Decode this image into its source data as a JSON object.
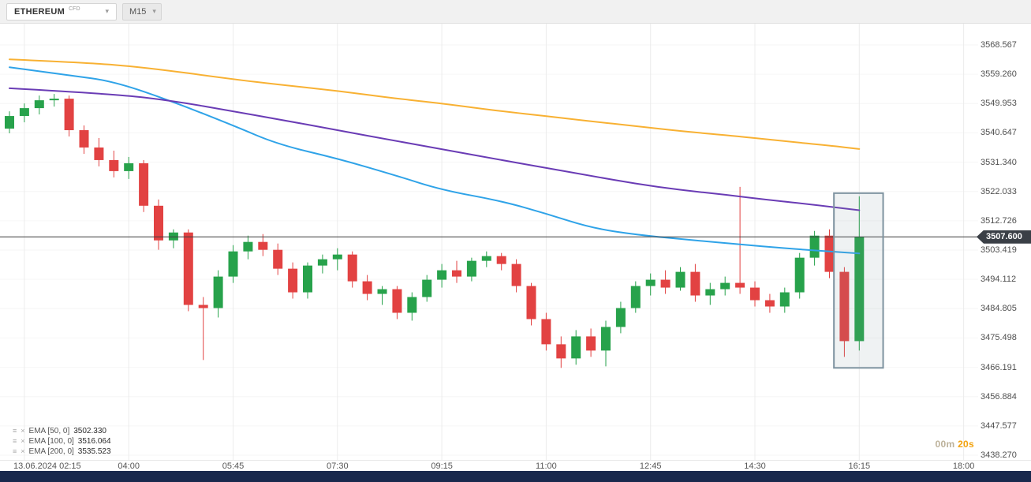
{
  "header": {
    "symbol": "ETHEREUM",
    "symbol_type": "CFD",
    "timeframe": "M15"
  },
  "legend": {
    "items": [
      {
        "label": "EMA [50, 0]",
        "value": "3502.330"
      },
      {
        "label": "EMA [100, 0]",
        "value": "3516.064"
      },
      {
        "label": "EMA [200, 0]",
        "value": "3535.523"
      }
    ]
  },
  "countdown": {
    "minutes": "00m",
    "seconds": "20s"
  },
  "colors": {
    "up": "#27a24b",
    "down": "#e24242",
    "price_line": "#3c3c3c",
    "badge_bg": "#3a3f46",
    "grid_v": "#ececec",
    "grid_h": "#f6f6f6",
    "highlight_stroke": "#7e93a0",
    "highlight_fill": "rgba(120,144,156,0.12)",
    "bottom_bar": "#19294d",
    "countdown_min": "#bdb29b",
    "countdown_sec": "#f2a20d"
  },
  "chart_data": {
    "type": "candlestick",
    "title": "ETHEREUM CFD M15",
    "date": "13.06.2024",
    "current_price": "3507.600",
    "y_axis_labels": [
      "3568.567",
      "3559.260",
      "3549.953",
      "3540.647",
      "3531.340",
      "3522.033",
      "3512.726",
      "3503.419",
      "3494.112",
      "3484.805",
      "3475.498",
      "3466.191",
      "3456.884",
      "3447.577",
      "3438.270"
    ],
    "x_ticks": [
      {
        "label": "13.06.2024 02:15",
        "index": 1,
        "align": "left"
      },
      {
        "label": "04:00",
        "index": 8
      },
      {
        "label": "05:45",
        "index": 15
      },
      {
        "label": "07:30",
        "index": 22
      },
      {
        "label": "09:15",
        "index": 29
      },
      {
        "label": "11:00",
        "index": 36
      },
      {
        "label": "12:45",
        "index": 43
      },
      {
        "label": "14:30",
        "index": 50
      },
      {
        "label": "16:15",
        "index": 57
      },
      {
        "label": "18:00",
        "index": 64
      }
    ],
    "candle_fields": [
      "time",
      "open",
      "high",
      "low",
      "close"
    ],
    "candles": [
      [
        "02:00",
        3542.0,
        3547.5,
        3540.5,
        3546.0
      ],
      [
        "02:15",
        3546.0,
        3550.0,
        3544.0,
        3548.5
      ],
      [
        "02:30",
        3548.5,
        3552.5,
        3546.5,
        3551.0
      ],
      [
        "02:45",
        3551.0,
        3553.0,
        3549.0,
        3551.5
      ],
      [
        "03:00",
        3551.5,
        3552.5,
        3539.5,
        3541.5
      ],
      [
        "03:15",
        3541.5,
        3543.0,
        3534.0,
        3536.0
      ],
      [
        "03:30",
        3536.0,
        3539.0,
        3530.0,
        3532.0
      ],
      [
        "03:45",
        3532.0,
        3535.0,
        3526.5,
        3528.5
      ],
      [
        "04:00",
        3528.5,
        3533.0,
        3526.0,
        3531.0
      ],
      [
        "04:15",
        3531.0,
        3532.0,
        3515.5,
        3517.5
      ],
      [
        "04:30",
        3517.5,
        3519.5,
        3503.5,
        3506.5
      ],
      [
        "04:45",
        3506.5,
        3510.0,
        3504.0,
        3509.0
      ],
      [
        "05:00",
        3509.0,
        3510.0,
        3484.0,
        3486.0
      ],
      [
        "05:15",
        3486.0,
        3488.5,
        3468.5,
        3485.0
      ],
      [
        "05:30",
        3485.0,
        3497.0,
        3482.0,
        3495.0
      ],
      [
        "05:45",
        3495.0,
        3505.0,
        3493.0,
        3503.0
      ],
      [
        "06:00",
        3503.0,
        3508.0,
        3500.5,
        3506.0
      ],
      [
        "06:15",
        3506.0,
        3508.5,
        3501.5,
        3503.5
      ],
      [
        "06:30",
        3503.5,
        3505.5,
        3495.5,
        3497.5
      ],
      [
        "06:45",
        3497.5,
        3499.5,
        3488.0,
        3490.0
      ],
      [
        "07:00",
        3490.0,
        3499.5,
        3488.0,
        3498.5
      ],
      [
        "07:15",
        3498.5,
        3502.0,
        3496.0,
        3500.5
      ],
      [
        "07:30",
        3500.5,
        3504.0,
        3497.0,
        3502.0
      ],
      [
        "07:45",
        3502.0,
        3503.0,
        3491.5,
        3493.5
      ],
      [
        "08:00",
        3493.5,
        3495.5,
        3487.5,
        3489.5
      ],
      [
        "08:15",
        3489.5,
        3492.0,
        3486.0,
        3491.0
      ],
      [
        "08:30",
        3491.0,
        3492.0,
        3481.5,
        3483.5
      ],
      [
        "08:45",
        3483.5,
        3490.0,
        3481.0,
        3488.5
      ],
      [
        "09:00",
        3488.5,
        3495.5,
        3487.0,
        3494.0
      ],
      [
        "09:15",
        3494.0,
        3499.0,
        3491.5,
        3497.0
      ],
      [
        "09:30",
        3497.0,
        3500.0,
        3493.0,
        3495.0
      ],
      [
        "09:45",
        3495.0,
        3501.0,
        3493.5,
        3500.0
      ],
      [
        "10:00",
        3500.0,
        3503.0,
        3498.0,
        3501.5
      ],
      [
        "10:15",
        3501.5,
        3502.5,
        3497.0,
        3499.0
      ],
      [
        "10:30",
        3499.0,
        3500.5,
        3490.0,
        3492.0
      ],
      [
        "10:45",
        3492.0,
        3493.0,
        3479.5,
        3481.5
      ],
      [
        "11:00",
        3481.5,
        3483.5,
        3471.5,
        3473.5
      ],
      [
        "11:15",
        3473.5,
        3476.0,
        3466.0,
        3469.0
      ],
      [
        "11:30",
        3469.0,
        3478.0,
        3467.0,
        3476.0
      ],
      [
        "11:45",
        3476.0,
        3478.5,
        3469.5,
        3471.5
      ],
      [
        "12:00",
        3471.5,
        3481.0,
        3466.5,
        3479.0
      ],
      [
        "12:15",
        3479.0,
        3487.0,
        3477.0,
        3485.0
      ],
      [
        "12:30",
        3485.0,
        3493.5,
        3483.5,
        3492.0
      ],
      [
        "12:45",
        3492.0,
        3496.0,
        3489.0,
        3494.0
      ],
      [
        "13:00",
        3494.0,
        3497.0,
        3489.5,
        3491.5
      ],
      [
        "13:15",
        3491.5,
        3498.0,
        3490.5,
        3496.5
      ],
      [
        "13:30",
        3496.5,
        3499.0,
        3487.0,
        3489.0
      ],
      [
        "13:45",
        3489.0,
        3493.0,
        3486.0,
        3491.0
      ],
      [
        "14:00",
        3491.0,
        3495.0,
        3489.0,
        3493.0
      ],
      [
        "14:15",
        3493.0,
        3523.5,
        3489.5,
        3491.5
      ],
      [
        "14:30",
        3491.5,
        3493.5,
        3485.5,
        3487.5
      ],
      [
        "14:45",
        3487.5,
        3489.5,
        3483.5,
        3485.5
      ],
      [
        "15:00",
        3485.5,
        3491.5,
        3483.5,
        3490.0
      ],
      [
        "15:15",
        3490.0,
        3502.5,
        3488.0,
        3501.0
      ],
      [
        "15:30",
        3501.0,
        3509.5,
        3498.5,
        3508.0
      ],
      [
        "15:45",
        3508.0,
        3510.0,
        3494.5,
        3496.5
      ],
      [
        "16:00",
        3496.5,
        3498.0,
        3469.5,
        3474.5
      ],
      [
        "16:15",
        3474.5,
        3520.5,
        3471.5,
        3507.6
      ]
    ],
    "emas": [
      {
        "name": "EMA 50",
        "period": 50,
        "color": "#2fa3e8",
        "value": "3502.330",
        "points": [
          [
            0,
            3561.5
          ],
          [
            4,
            3559.0
          ],
          [
            7,
            3557.0
          ],
          [
            11,
            3550.5
          ],
          [
            15,
            3543.0
          ],
          [
            18,
            3537.0
          ],
          [
            22,
            3532.5
          ],
          [
            26,
            3527.0
          ],
          [
            29,
            3522.5
          ],
          [
            33,
            3519.0
          ],
          [
            36,
            3515.0
          ],
          [
            39,
            3510.5
          ],
          [
            42,
            3508.3
          ],
          [
            46,
            3506.5
          ],
          [
            49,
            3505.2
          ],
          [
            52,
            3504.0
          ],
          [
            55,
            3503.0
          ],
          [
            57,
            3502.33
          ]
        ]
      },
      {
        "name": "EMA 100",
        "period": 100,
        "color": "#6a3cb5",
        "value": "3516.064",
        "points": [
          [
            0,
            3554.8
          ],
          [
            7,
            3553.0
          ],
          [
            11,
            3550.8
          ],
          [
            15,
            3547.5
          ],
          [
            18,
            3545.0
          ],
          [
            22,
            3541.5
          ],
          [
            26,
            3538.0
          ],
          [
            29,
            3535.5
          ],
          [
            33,
            3532.0
          ],
          [
            36,
            3529.5
          ],
          [
            39,
            3527.0
          ],
          [
            42,
            3524.5
          ],
          [
            45,
            3522.5
          ],
          [
            48,
            3521.0
          ],
          [
            51,
            3519.3
          ],
          [
            54,
            3517.8
          ],
          [
            57,
            3516.06
          ]
        ]
      },
      {
        "name": "EMA 200",
        "period": 200,
        "color": "#f8b133",
        "value": "3535.523",
        "points": [
          [
            0,
            3564.0
          ],
          [
            5,
            3563.0
          ],
          [
            9,
            3561.5
          ],
          [
            15,
            3557.7
          ],
          [
            18,
            3556.0
          ],
          [
            22,
            3554.0
          ],
          [
            26,
            3551.5
          ],
          [
            29,
            3550.0
          ],
          [
            33,
            3547.5
          ],
          [
            36,
            3546.0
          ],
          [
            39,
            3544.3
          ],
          [
            42,
            3542.8
          ],
          [
            45,
            3541.2
          ],
          [
            49,
            3539.5
          ],
          [
            52,
            3538.0
          ],
          [
            55,
            3536.6
          ],
          [
            57,
            3535.52
          ]
        ]
      }
    ],
    "highlight_box": {
      "index_range": [
        55.3,
        58.6
      ],
      "price_range": [
        3466.0,
        3521.5
      ]
    }
  }
}
